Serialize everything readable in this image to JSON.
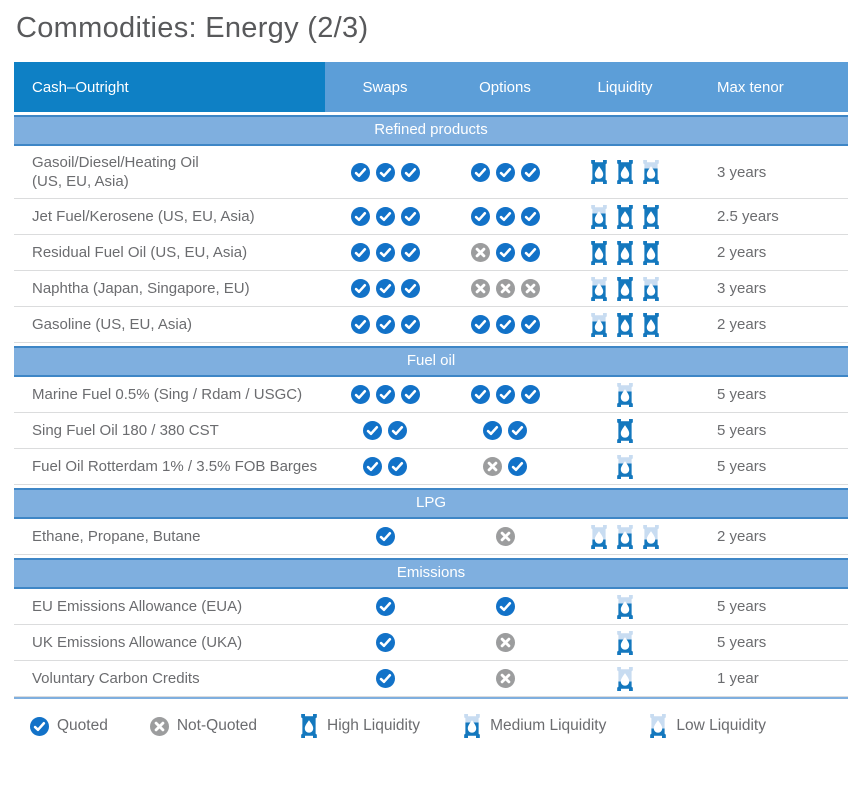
{
  "page": {
    "title": "Commodities: Energy (2/3)"
  },
  "colors": {
    "header_dark_blue": "#0E80C5",
    "header_light_blue": "#5C9ED8",
    "section_band_blue": "#7FAFDF",
    "section_band_border": "#3E86C6",
    "quoted_blue": "#1272C8",
    "not_quoted_gray": "#9C9D9E",
    "barrel_dark": "#1478BE",
    "barrel_light": "#C8DCF1",
    "text_gray": "#6B6C6F"
  },
  "table": {
    "columns": [
      "Cash–Outright",
      "Swaps",
      "Options",
      "Liquidity",
      "Max tenor"
    ],
    "sections": [
      {
        "label": "Refined products",
        "rows": [
          {
            "name_lines": [
              "Gasoil/Diesel/Heating Oil",
              "(US, EU, Asia)"
            ],
            "swaps": [
              "quoted",
              "quoted",
              "quoted"
            ],
            "options": [
              "quoted",
              "quoted",
              "quoted"
            ],
            "liquidity": [
              "high",
              "high",
              "medium"
            ],
            "max_tenor": "3 years"
          },
          {
            "name_lines": [
              "Jet Fuel/Kerosene (US, EU, Asia)"
            ],
            "swaps": [
              "quoted",
              "quoted",
              "quoted"
            ],
            "options": [
              "quoted",
              "quoted",
              "quoted"
            ],
            "liquidity": [
              "medium",
              "high",
              "high"
            ],
            "max_tenor": "2.5 years"
          },
          {
            "name_lines": [
              "Residual Fuel Oil (US, EU, Asia)"
            ],
            "swaps": [
              "quoted",
              "quoted",
              "quoted"
            ],
            "options": [
              "not-quoted",
              "quoted",
              "quoted"
            ],
            "liquidity": [
              "high",
              "high",
              "high"
            ],
            "max_tenor": "2 years"
          },
          {
            "name_lines": [
              "Naphtha (Japan, Singapore, EU)"
            ],
            "swaps": [
              "quoted",
              "quoted",
              "quoted"
            ],
            "options": [
              "not-quoted",
              "not-quoted",
              "not-quoted"
            ],
            "liquidity": [
              "medium",
              "high",
              "medium"
            ],
            "max_tenor": "3 years"
          },
          {
            "name_lines": [
              "Gasoline (US, EU, Asia)"
            ],
            "swaps": [
              "quoted",
              "quoted",
              "quoted"
            ],
            "options": [
              "quoted",
              "quoted",
              "quoted"
            ],
            "liquidity": [
              "medium",
              "high",
              "high"
            ],
            "max_tenor": "2 years"
          }
        ]
      },
      {
        "label": "Fuel oil",
        "rows": [
          {
            "name_lines": [
              "Marine Fuel 0.5% (Sing / Rdam / USGC)"
            ],
            "swaps": [
              "quoted",
              "quoted",
              "quoted"
            ],
            "options": [
              "quoted",
              "quoted",
              "quoted"
            ],
            "liquidity": [
              "medium"
            ],
            "max_tenor": "5 years"
          },
          {
            "name_lines": [
              "Sing Fuel Oil 180 / 380 CST"
            ],
            "swaps": [
              "quoted",
              "quoted"
            ],
            "options": [
              "quoted",
              "quoted"
            ],
            "liquidity": [
              "high"
            ],
            "max_tenor": "5 years"
          },
          {
            "name_lines": [
              "Fuel Oil Rotterdam 1% / 3.5% FOB Barges"
            ],
            "swaps": [
              "quoted",
              "quoted"
            ],
            "options": [
              "not-quoted",
              "quoted"
            ],
            "liquidity": [
              "medium"
            ],
            "max_tenor": "5 years"
          }
        ]
      },
      {
        "label": "LPG",
        "rows": [
          {
            "name_lines": [
              "Ethane, Propane, Butane"
            ],
            "swaps": [
              "quoted"
            ],
            "options": [
              "not-quoted"
            ],
            "liquidity": [
              "low",
              "medium",
              "low"
            ],
            "max_tenor": "2 years"
          }
        ]
      },
      {
        "label": "Emissions",
        "rows": [
          {
            "name_lines": [
              "EU Emissions Allowance (EUA)"
            ],
            "swaps": [
              "quoted"
            ],
            "options": [
              "quoted"
            ],
            "liquidity": [
              "medium"
            ],
            "max_tenor": "5 years"
          },
          {
            "name_lines": [
              "UK Emissions Allowance (UKA)"
            ],
            "swaps": [
              "quoted"
            ],
            "options": [
              "not-quoted"
            ],
            "liquidity": [
              "medium"
            ],
            "max_tenor": "5 years"
          },
          {
            "name_lines": [
              "Voluntary Carbon Credits"
            ],
            "swaps": [
              "quoted"
            ],
            "options": [
              "not-quoted"
            ],
            "liquidity": [
              "low"
            ],
            "max_tenor": "1 year"
          }
        ]
      }
    ]
  },
  "legend": {
    "items": [
      {
        "icon": "quoted",
        "label": "Quoted"
      },
      {
        "icon": "not-quoted",
        "label": "Not-Quoted"
      },
      {
        "icon": "high",
        "label": "High Liquidity"
      },
      {
        "icon": "medium",
        "label": "Medium Liquidity"
      },
      {
        "icon": "low",
        "label": "Low Liquidity"
      }
    ]
  }
}
